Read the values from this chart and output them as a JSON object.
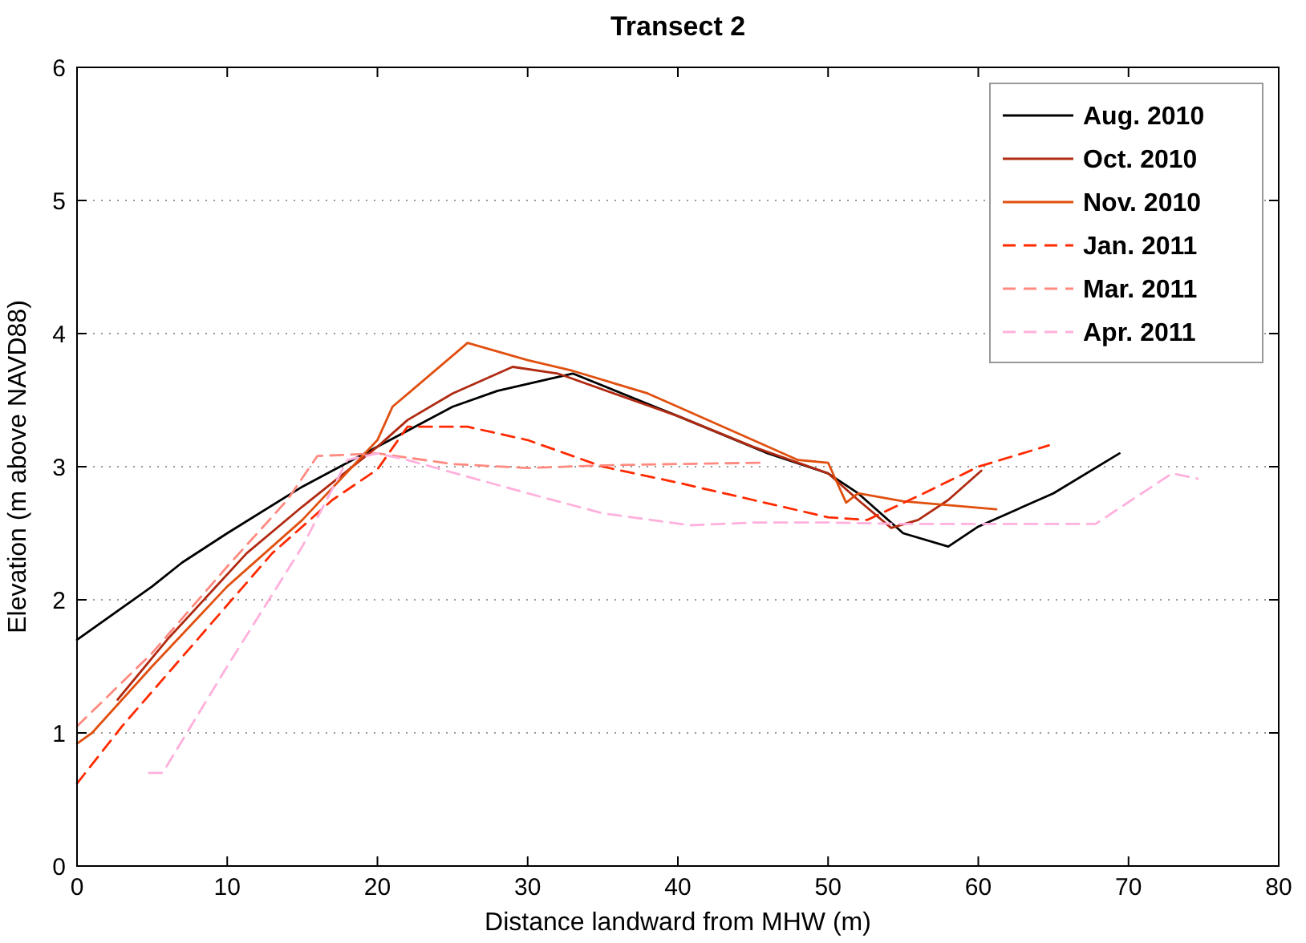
{
  "chart_data": {
    "type": "line",
    "title": "Transect 2",
    "xlabel": "Distance landward from MHW (m)",
    "ylabel": "Elevation (m above NAVD88)",
    "xlim": [
      0,
      80
    ],
    "ylim": [
      0,
      6
    ],
    "xticks": [
      0,
      10,
      20,
      30,
      40,
      50,
      60,
      70,
      80
    ],
    "yticks": [
      0,
      1,
      2,
      3,
      4,
      5,
      6
    ],
    "grid": "y",
    "legend": "top right",
    "series": [
      {
        "name": "Aug. 2010",
        "color": "#000000",
        "line_style": "solid",
        "x": [
          0,
          5,
          7,
          10,
          15,
          20,
          25,
          28,
          33,
          40,
          46,
          50,
          52,
          55,
          58,
          60,
          65,
          69.4
        ],
        "values": [
          1.7,
          2.1,
          2.28,
          2.5,
          2.85,
          3.15,
          3.45,
          3.57,
          3.7,
          3.38,
          3.1,
          2.95,
          2.8,
          2.5,
          2.4,
          2.55,
          2.8,
          3.1
        ]
      },
      {
        "name": "Oct. 2010",
        "color": "#b02a12",
        "line_style": "solid",
        "x": [
          2.7,
          6,
          11.3,
          15,
          20,
          22,
          25,
          29,
          32,
          40,
          45,
          50,
          52,
          54.2,
          56,
          58,
          60.2
        ],
        "values": [
          1.25,
          1.7,
          2.35,
          2.7,
          3.15,
          3.35,
          3.55,
          3.75,
          3.7,
          3.38,
          3.15,
          2.95,
          2.75,
          2.54,
          2.6,
          2.75,
          2.97
        ]
      },
      {
        "name": "Nov. 2010",
        "color": "#e0500f",
        "line_style": "solid",
        "x": [
          0,
          1,
          5,
          10,
          15,
          20,
          21,
          26,
          30,
          33,
          38,
          40,
          45,
          48,
          50,
          51.2,
          52,
          55,
          61.2
        ],
        "values": [
          0.92,
          1.0,
          1.5,
          2.1,
          2.6,
          3.2,
          3.45,
          3.93,
          3.8,
          3.72,
          3.55,
          3.45,
          3.2,
          3.05,
          3.03,
          2.73,
          2.8,
          2.74,
          2.68
        ]
      },
      {
        "name": "Jan. 2011",
        "color": "#ff2a00",
        "line_style": "dashed",
        "x": [
          0,
          3,
          8,
          13,
          17,
          20,
          22,
          26,
          30,
          35,
          40,
          45,
          50,
          52.6,
          56,
          60,
          64.7
        ],
        "values": [
          0.62,
          1.05,
          1.7,
          2.35,
          2.75,
          2.98,
          3.3,
          3.3,
          3.2,
          3.0,
          2.88,
          2.75,
          2.62,
          2.6,
          2.78,
          3.0,
          3.16
        ]
      },
      {
        "name": "Mar. 2011",
        "color": "#ff8a80",
        "line_style": "dashed",
        "x": [
          0,
          5,
          10,
          14,
          16,
          20,
          25,
          30,
          35,
          40,
          45.8
        ],
        "values": [
          1.05,
          1.6,
          2.25,
          2.75,
          3.08,
          3.1,
          3.02,
          2.99,
          3.01,
          3.02,
          3.03
        ]
      },
      {
        "name": "Apr. 2011",
        "color": "#ffb0dc",
        "line_style": "dashed",
        "x": [
          4.8,
          5.7,
          10,
          15,
          18,
          20,
          22,
          30,
          35,
          40.8,
          45,
          50,
          55,
          60,
          67.8,
          72.9,
          74.6
        ],
        "values": [
          0.7,
          0.7,
          1.5,
          2.4,
          3.05,
          3.1,
          3.05,
          2.8,
          2.65,
          2.56,
          2.58,
          2.58,
          2.57,
          2.57,
          2.57,
          2.95,
          2.91
        ]
      }
    ]
  }
}
